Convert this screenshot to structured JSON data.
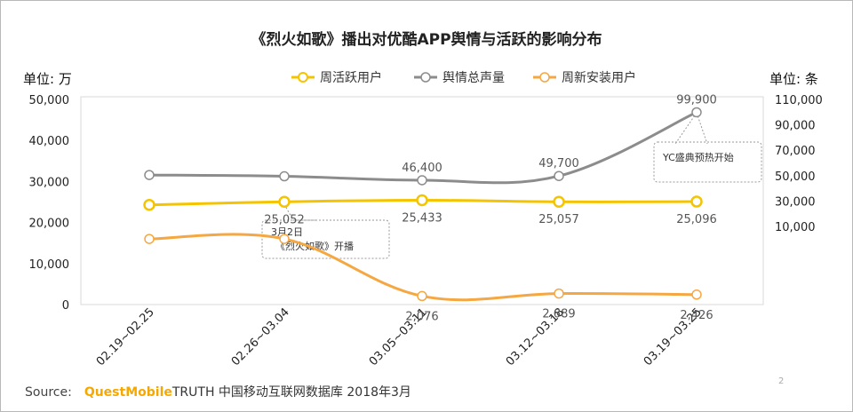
{
  "chart_data": {
    "type": "line",
    "title": "《烈火如歌》播出对优酷APP舆情与活跃的影响分布",
    "categories": [
      "02.19~02.25",
      "02.26~03.04",
      "03.05~03.11",
      "03.12~03.18",
      "03.19~03.25"
    ],
    "y_left": {
      "unit_label": "单位: 万",
      "range": [
        0,
        50000
      ],
      "ticks": [
        "0",
        "10,000",
        "20,000",
        "30,000",
        "40,000",
        "50,000"
      ]
    },
    "y_right": {
      "unit_label": "单位: 条",
      "ticks": [
        "10,000",
        "30,000",
        "50,000",
        "70,000",
        "90,000",
        "110,000"
      ]
    },
    "series": [
      {
        "name": "周活跃用户",
        "axis": "left",
        "color": "#f5c400",
        "values": [
          24300,
          25052,
          25433,
          25057,
          25096
        ],
        "labels": [
          "",
          "25,052",
          "25,433",
          "25,057",
          "25,096"
        ]
      },
      {
        "name": "舆情总声量",
        "axis": "right",
        "color": "#8c8c8c",
        "values": [
          50500,
          49500,
          46400,
          49700,
          99900
        ],
        "labels": [
          "",
          "",
          "46,400",
          "49,700",
          "99,900"
        ]
      },
      {
        "name": "周新安装用户",
        "axis": "left",
        "color": "#f5a742",
        "values": [
          16000,
          16000,
          2076,
          2689,
          2426
        ],
        "labels": [
          "",
          "",
          "2,076",
          "2,689",
          "2,426"
        ]
      }
    ],
    "annotations": [
      {
        "text_lines": [
          "3月2日",
          "《烈火如歌》开播"
        ]
      },
      {
        "text_lines": [
          "YC盛典预热开始"
        ]
      }
    ],
    "grid": false,
    "legend_position": "top"
  },
  "footer": {
    "source_label": "Source:",
    "brand": "QuestMobile",
    "source_rest": "TRUTH 中国移动互联网数据库 2018年3月",
    "page_number": "2"
  }
}
